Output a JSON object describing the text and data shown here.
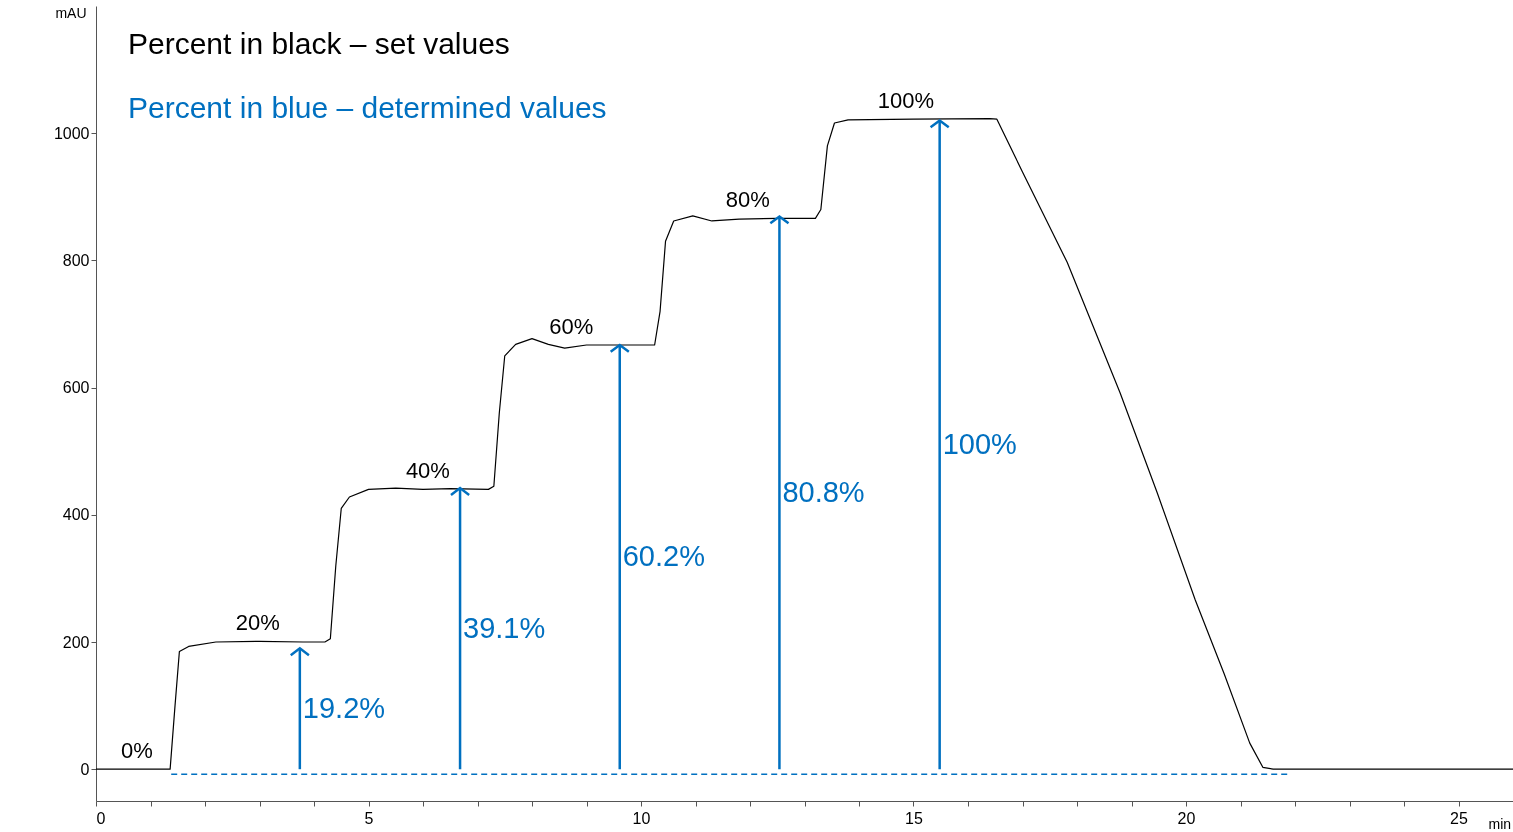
{
  "chart_data": {
    "type": "line",
    "title": "Percent in black – set values",
    "subtitle": "Percent in blue – determined values",
    "xlabel": "min",
    "ylabel": "mAU",
    "xlim": [
      0,
      26
    ],
    "ylim": [
      -50,
      1200
    ],
    "xticks": [
      0,
      {
        "value": 1,
        "label": null
      },
      {
        "value": 2,
        "label": null
      },
      {
        "value": 3,
        "label": null
      },
      {
        "value": 4,
        "label": null
      },
      5,
      {
        "value": 6,
        "label": null
      },
      {
        "value": 7,
        "label": null
      },
      {
        "value": 8,
        "label": null
      },
      {
        "value": 9,
        "label": null
      },
      10,
      {
        "value": 11,
        "label": null
      },
      {
        "value": 12,
        "label": null
      },
      {
        "value": 13,
        "label": null
      },
      {
        "value": 14,
        "label": null
      },
      15,
      {
        "value": 16,
        "label": null
      },
      {
        "value": 17,
        "label": null
      },
      {
        "value": 18,
        "label": null
      },
      {
        "value": 19,
        "label": null
      },
      20,
      {
        "value": 21,
        "label": null
      },
      {
        "value": 22,
        "label": null
      },
      {
        "value": 23,
        "label": null
      },
      {
        "value": 24,
        "label": null
      },
      25,
      {
        "value": 26,
        "label": null
      }
    ],
    "yticks": [
      0,
      200,
      400,
      600,
      800,
      1000
    ],
    "series": [
      {
        "color": "#000000",
        "x": [
          0,
          1.36,
          1.45,
          1.53,
          1.7,
          2.2,
          3.0,
          3.8,
          4.2,
          4.3,
          4.4,
          4.5,
          4.65,
          5.0,
          5.5,
          6.0,
          6.5,
          7.2,
          7.3,
          7.4,
          7.5,
          7.7,
          8.0,
          8.3,
          8.6,
          9.0,
          9.5,
          10.25,
          10.35,
          10.45,
          10.6,
          10.95,
          11.3,
          11.8,
          12.5,
          13.2,
          13.3,
          13.42,
          13.55,
          13.8,
          15.0,
          16.4,
          16.53,
          17.0,
          17.82,
          18.79,
          19.47,
          20.17,
          20.7,
          21.17,
          21.41,
          21.6,
          26
        ],
        "values": [
          0,
          0,
          100,
          185,
          193,
          200,
          201,
          200,
          200,
          205,
          320,
          410,
          428,
          440,
          442,
          440,
          441,
          440,
          445,
          560,
          650,
          668,
          677,
          668,
          662,
          667,
          667,
          667,
          720,
          830,
          862,
          870,
          862,
          865,
          866,
          866,
          880,
          980,
          1016,
          1021,
          1022,
          1023,
          1022,
          939,
          797,
          592,
          435,
          266,
          150,
          41,
          3,
          0,
          0
        ]
      },
      {
        "type": "line",
        "color": "#0070c0",
        "line_style": "dashed",
        "x": [
          1.38,
          21.9
        ],
        "values": [
          -8,
          -8
        ]
      },
      {
        "type": "lollipop",
        "color": "#0070c0",
        "x": [
          3.74,
          6.68,
          9.61,
          12.54,
          15.48
        ],
        "values": [
          190,
          442,
          667,
          869,
          1020
        ]
      }
    ],
    "annotations": [
      {
        "text": "0%",
        "x": 0.75,
        "y": 0
      },
      {
        "text": "20%",
        "x": 2.97,
        "y": 201
      },
      {
        "text": "40%",
        "x": 6.09,
        "y": 441
      },
      {
        "text": "60%",
        "x": 8.72,
        "y": 667
      },
      {
        "text": "80%",
        "x": 11.96,
        "y": 866
      },
      {
        "text": "100%",
        "x": 14.86,
        "y": 1022
      },
      "19.2%",
      "39.1%",
      "60.2%",
      "80.8%",
      "100%"
    ]
  }
}
